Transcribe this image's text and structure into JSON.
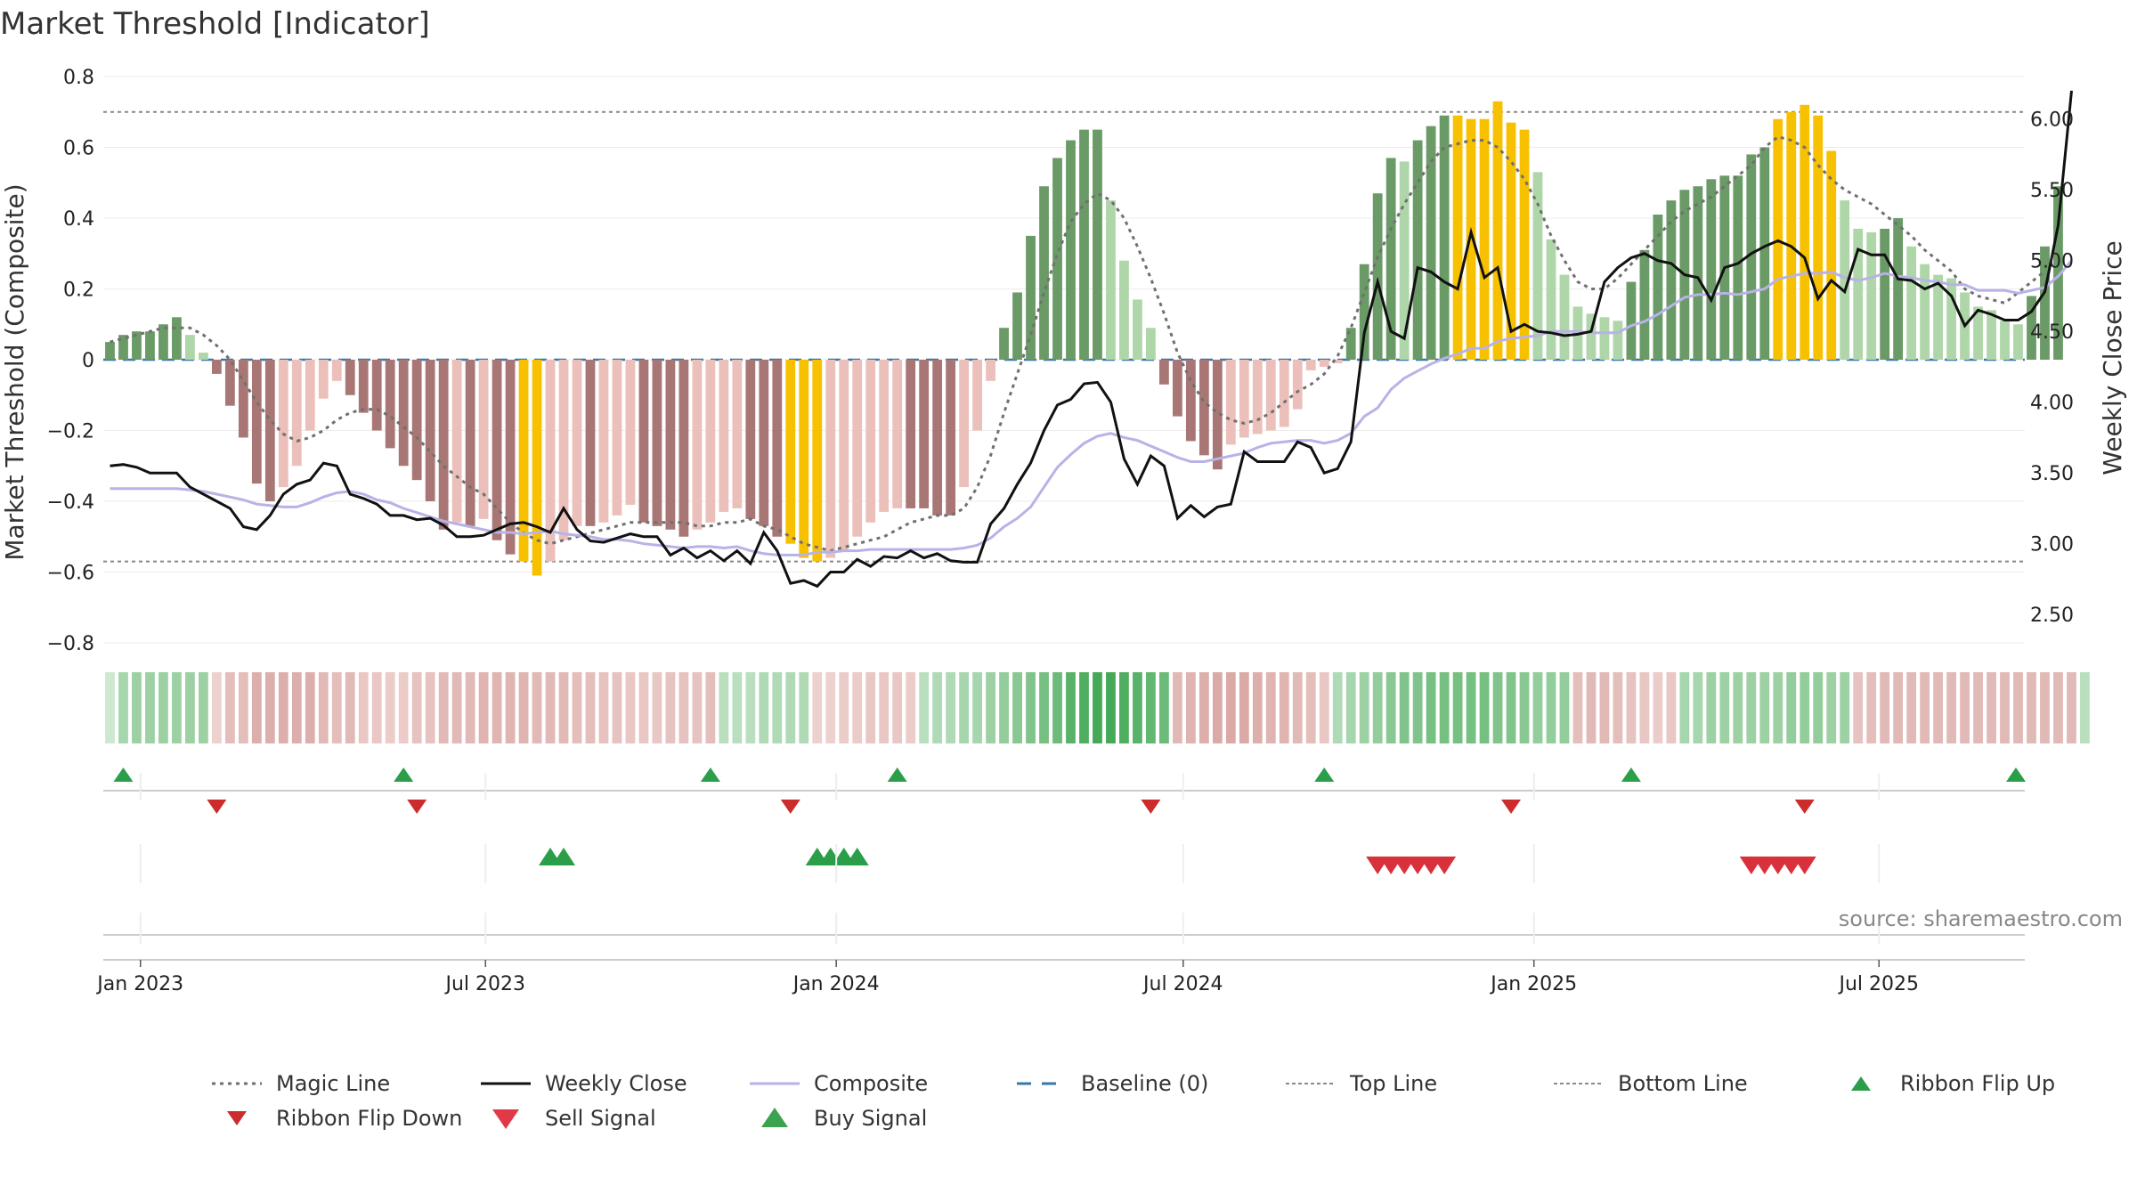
{
  "title": "Market Threshold [Indicator]",
  "source": "source: sharemaestro.com",
  "colors": {
    "bar_pos_dark": "#6a9a66",
    "bar_pos_light": "#aed6a8",
    "bar_neg_dark": "#a87775",
    "bar_neg_light": "#ebc0bb",
    "extreme": "#f8c100",
    "weekly_close": "#111111",
    "composite": "#b8b2e6",
    "magic": "#707070",
    "baseline": "#3a78a8",
    "buy": "#2a9e48",
    "sell": "#d8313c",
    "ribbon_flip_down": "#cc2c2c"
  },
  "chart_data": {
    "type": "bar",
    "xlabel": "",
    "ylabel": "Market Threshold (Composite)",
    "y2label": "Weekly Close Price",
    "ylim": [
      -0.8,
      0.8
    ],
    "y2lim": [
      2.3,
      6.3
    ],
    "yticks": [
      "−0.8",
      "−0.6",
      "−0.4",
      "−0.2",
      "0",
      "0.2",
      "0.4",
      "0.6",
      "0.8"
    ],
    "y2ticks": [
      "2.50",
      "3.00",
      "3.50",
      "4.00",
      "4.50",
      "5.00",
      "5.50",
      "6.00"
    ],
    "xticks": [
      "Jan 2023",
      "Jul 2023",
      "Jan 2024",
      "Jul 2024",
      "Jan 2025",
      "Jul 2025"
    ],
    "top_line": 0.7,
    "bottom_line": -0.57,
    "baseline": 0,
    "start_date": "2022-12-16",
    "weeks": 144,
    "composite_bars": [
      0.05,
      0.07,
      0.08,
      0.08,
      0.1,
      0.12,
      0.07,
      0.02,
      -0.04,
      -0.13,
      -0.22,
      -0.35,
      -0.4,
      -0.36,
      -0.3,
      -0.2,
      -0.11,
      -0.06,
      -0.1,
      -0.15,
      -0.2,
      -0.25,
      -0.3,
      -0.34,
      -0.4,
      -0.48,
      -0.46,
      -0.47,
      -0.45,
      -0.51,
      -0.55,
      -0.57,
      -0.61,
      -0.57,
      -0.51,
      -0.47,
      -0.47,
      -0.46,
      -0.44,
      -0.41,
      -0.46,
      -0.47,
      -0.48,
      -0.5,
      -0.48,
      -0.46,
      -0.43,
      -0.42,
      -0.45,
      -0.47,
      -0.5,
      -0.52,
      -0.56,
      -0.57,
      -0.56,
      -0.54,
      -0.5,
      -0.46,
      -0.43,
      -0.42,
      -0.42,
      -0.42,
      -0.44,
      -0.44,
      -0.36,
      -0.2,
      -0.06,
      0.09,
      0.19,
      0.35,
      0.49,
      0.57,
      0.62,
      0.65,
      0.65,
      0.45,
      0.28,
      0.17,
      0.09,
      -0.07,
      -0.16,
      -0.23,
      -0.27,
      -0.31,
      -0.24,
      -0.22,
      -0.21,
      -0.2,
      -0.19,
      -0.14,
      -0.03,
      -0.02,
      -0.01,
      0.09,
      0.27,
      0.47,
      0.57,
      0.56,
      0.62,
      0.66,
      0.69,
      0.69,
      0.68,
      0.68,
      0.73,
      0.67,
      0.65,
      0.53,
      0.34,
      0.24,
      0.15,
      0.13,
      0.12,
      0.11,
      0.22,
      0.31,
      0.41,
      0.45,
      0.48,
      0.49,
      0.51,
      0.52,
      0.52,
      0.58,
      0.6,
      0.68,
      0.7,
      0.72,
      0.69,
      0.59,
      0.45,
      0.37,
      0.36,
      0.37,
      0.4,
      0.32,
      0.27,
      0.24,
      0.23,
      0.19,
      0.15,
      0.14,
      0.11,
      0.1,
      0.18,
      0.32,
      0.49
    ],
    "extreme_indices": [
      31,
      32,
      51,
      52,
      53,
      101,
      102,
      103,
      104,
      105,
      106,
      125,
      126,
      127,
      128,
      129
    ],
    "series": [
      {
        "name": "Weekly Close",
        "axis": "right",
        "values": [
          3.55,
          3.56,
          3.54,
          3.5,
          3.5,
          3.5,
          3.4,
          3.35,
          3.3,
          3.25,
          3.12,
          3.1,
          3.2,
          3.35,
          3.42,
          3.45,
          3.57,
          3.55,
          3.35,
          3.32,
          3.28,
          3.2,
          3.2,
          3.17,
          3.18,
          3.13,
          3.05,
          3.05,
          3.06,
          3.1,
          3.14,
          3.15,
          3.12,
          3.08,
          3.25,
          3.1,
          3.02,
          3.01,
          3.04,
          3.07,
          3.05,
          3.05,
          2.92,
          2.97,
          2.9,
          2.95,
          2.88,
          2.95,
          2.86,
          3.08,
          2.95,
          2.72,
          2.74,
          2.7,
          2.8,
          2.8,
          2.89,
          2.84,
          2.91,
          2.9,
          2.95,
          2.9,
          2.93,
          2.88,
          2.87,
          2.87,
          3.14,
          3.25,
          3.42,
          3.57,
          3.8,
          3.98,
          4.02,
          4.13,
          4.14,
          4.0,
          3.6,
          3.42,
          3.62,
          3.55,
          3.18,
          3.27,
          3.19,
          3.26,
          3.28,
          3.65,
          3.58,
          3.58,
          3.58,
          3.72,
          3.68,
          3.5,
          3.53,
          3.72,
          4.49,
          4.85,
          4.5,
          4.45,
          4.95,
          4.92,
          4.85,
          4.8,
          5.2,
          4.88,
          4.95,
          4.5,
          4.55,
          4.5,
          4.49,
          4.47,
          4.48,
          4.5,
          4.85,
          4.95,
          5.02,
          5.05,
          5.0,
          4.98,
          4.9,
          4.88,
          4.72,
          4.95,
          4.98,
          5.05,
          5.1,
          5.14,
          5.1,
          5.02,
          4.73,
          4.86,
          4.78,
          5.08,
          5.04,
          5.04,
          4.87,
          4.86,
          4.8,
          4.84,
          4.75,
          4.54,
          4.65,
          4.62,
          4.58,
          4.58,
          4.64,
          4.78,
          5.25,
          6.2
        ]
      },
      {
        "name": "Composite",
        "axis": "right",
        "values": [
          3.39,
          3.39,
          3.39,
          3.39,
          3.39,
          3.39,
          3.38,
          3.37,
          3.35,
          3.33,
          3.31,
          3.28,
          3.27,
          3.26,
          3.26,
          3.29,
          3.33,
          3.36,
          3.37,
          3.35,
          3.31,
          3.29,
          3.25,
          3.22,
          3.19,
          3.16,
          3.14,
          3.12,
          3.1,
          3.08,
          3.08,
          3.07,
          3.08,
          3.09,
          3.07,
          3.06,
          3.05,
          3.03,
          3.03,
          3.02,
          3.0,
          2.99,
          2.98,
          2.97,
          2.98,
          2.98,
          2.97,
          2.98,
          2.95,
          2.93,
          2.92,
          2.92,
          2.92,
          2.94,
          2.94,
          2.95,
          2.95,
          2.96,
          2.96,
          2.96,
          2.96,
          2.96,
          2.96,
          2.96,
          2.97,
          2.99,
          3.04,
          3.12,
          3.18,
          3.26,
          3.4,
          3.54,
          3.63,
          3.71,
          3.76,
          3.78,
          3.75,
          3.73,
          3.69,
          3.65,
          3.61,
          3.58,
          3.58,
          3.6,
          3.62,
          3.64,
          3.68,
          3.71,
          3.72,
          3.73,
          3.73,
          3.71,
          3.73,
          3.78,
          3.9,
          3.96,
          4.09,
          4.17,
          4.22,
          4.27,
          4.31,
          4.34,
          4.38,
          4.38,
          4.43,
          4.45,
          4.46,
          4.47,
          4.5,
          4.5,
          4.5,
          4.49,
          4.49,
          4.49,
          4.54,
          4.57,
          4.62,
          4.68,
          4.74,
          4.76,
          4.76,
          4.77,
          4.76,
          4.78,
          4.8,
          4.87,
          4.89,
          4.91,
          4.91,
          4.92,
          4.88,
          4.86,
          4.88,
          4.91,
          4.89,
          4.88,
          4.86,
          4.85,
          4.83,
          4.83,
          4.79,
          4.79,
          4.79,
          4.77,
          4.79,
          4.81,
          4.89,
          5.0
        ]
      },
      {
        "name": "Magic Line",
        "axis": "left",
        "values": [
          0.05,
          0.06,
          0.07,
          0.08,
          0.09,
          0.09,
          0.09,
          0.07,
          0.04,
          0,
          -0.06,
          -0.12,
          -0.17,
          -0.21,
          -0.23,
          -0.22,
          -0.2,
          -0.17,
          -0.15,
          -0.14,
          -0.14,
          -0.16,
          -0.19,
          -0.22,
          -0.26,
          -0.3,
          -0.33,
          -0.36,
          -0.38,
          -0.42,
          -0.46,
          -0.49,
          -0.51,
          -0.52,
          -0.51,
          -0.5,
          -0.49,
          -0.48,
          -0.47,
          -0.46,
          -0.46,
          -0.46,
          -0.46,
          -0.46,
          -0.47,
          -0.47,
          -0.46,
          -0.46,
          -0.45,
          -0.47,
          -0.48,
          -0.5,
          -0.52,
          -0.53,
          -0.54,
          -0.53,
          -0.52,
          -0.51,
          -0.5,
          -0.48,
          -0.46,
          -0.45,
          -0.44,
          -0.44,
          -0.42,
          -0.36,
          -0.27,
          -0.15,
          -0.04,
          0.07,
          0.19,
          0.3,
          0.39,
          0.44,
          0.47,
          0.45,
          0.4,
          0.32,
          0.23,
          0.13,
          0.02,
          -0.06,
          -0.12,
          -0.15,
          -0.17,
          -0.18,
          -0.17,
          -0.15,
          -0.12,
          -0.09,
          -0.07,
          -0.04,
          0.01,
          0.09,
          0.19,
          0.29,
          0.37,
          0.44,
          0.5,
          0.56,
          0.6,
          0.61,
          0.62,
          0.62,
          0.6,
          0.56,
          0.51,
          0.44,
          0.35,
          0.28,
          0.22,
          0.2,
          0.2,
          0.23,
          0.27,
          0.31,
          0.35,
          0.39,
          0.42,
          0.44,
          0.46,
          0.49,
          0.52,
          0.55,
          0.6,
          0.63,
          0.62,
          0.6,
          0.55,
          0.51,
          0.48,
          0.46,
          0.44,
          0.41,
          0.38,
          0.35,
          0.31,
          0.28,
          0.25,
          0.2,
          0.18,
          0.17,
          0.16,
          0.19,
          0.22,
          0.25
        ]
      }
    ],
    "ribbon": [
      0.15,
      0.35,
      0.4,
      0.4,
      0.4,
      0.4,
      0.4,
      0.4,
      -0.2,
      -0.4,
      -0.4,
      -0.55,
      -0.55,
      -0.55,
      -0.55,
      -0.55,
      -0.45,
      -0.4,
      -0.45,
      -0.3,
      -0.3,
      -0.25,
      -0.25,
      -0.35,
      -0.35,
      -0.45,
      -0.45,
      -0.45,
      -0.5,
      -0.5,
      -0.5,
      -0.5,
      -0.45,
      -0.45,
      -0.45,
      -0.4,
      -0.4,
      -0.35,
      -0.35,
      -0.3,
      -0.3,
      -0.3,
      -0.35,
      -0.35,
      -0.35,
      -0.4,
      0.25,
      0.25,
      0.25,
      0.3,
      0.3,
      0.3,
      0.3,
      -0.2,
      -0.2,
      -0.25,
      -0.25,
      -0.3,
      -0.3,
      -0.3,
      -0.25,
      0.25,
      0.3,
      0.3,
      0.35,
      0.35,
      0.4,
      0.45,
      0.5,
      0.55,
      0.6,
      0.65,
      0.75,
      0.8,
      0.85,
      0.85,
      0.8,
      0.75,
      0.7,
      0.65,
      -0.45,
      -0.5,
      -0.55,
      -0.6,
      -0.6,
      -0.6,
      -0.55,
      -0.5,
      -0.5,
      -0.45,
      -0.4,
      -0.3,
      0.3,
      0.35,
      0.4,
      0.45,
      0.5,
      0.55,
      0.55,
      0.6,
      0.6,
      0.6,
      0.6,
      0.6,
      0.55,
      0.55,
      0.5,
      0.45,
      0.45,
      0.45,
      -0.4,
      -0.45,
      -0.45,
      -0.4,
      -0.35,
      -0.3,
      -0.25,
      -0.3,
      0.35,
      0.35,
      0.4,
      0.4,
      0.4,
      0.4,
      0.4,
      0.4,
      0.45,
      0.45,
      0.45,
      0.4,
      0.4,
      -0.35,
      -0.4,
      -0.45,
      -0.45,
      -0.45,
      -0.45,
      -0.45,
      -0.45,
      -0.45,
      -0.45,
      -0.45,
      -0.45,
      -0.45,
      -0.45,
      -0.45,
      -0.45,
      -0.45,
      0.25
    ],
    "ribbon_flip_up": [
      "2022-12-23",
      "2023-05-19",
      "2023-10-27",
      "2024-02-02",
      "2024-09-13",
      "2025-02-21",
      "2025-10-03"
    ],
    "ribbon_flip_down": [
      "2023-02-10",
      "2023-05-26",
      "2023-12-08",
      "2024-06-14",
      "2024-12-20",
      "2025-05-23"
    ],
    "buy_signals": [
      "2023-08-04",
      "2023-08-11",
      "2023-12-22",
      "2023-12-29",
      "2024-01-05",
      "2024-01-12"
    ],
    "sell_signals": [
      "2024-10-11",
      "2024-10-18",
      "2024-10-25",
      "2024-11-01",
      "2024-11-08",
      "2024-11-15",
      "2025-04-25",
      "2025-05-02",
      "2025-05-09",
      "2025-05-16",
      "2025-05-23"
    ],
    "legend": [
      {
        "label": "Magic Line",
        "kind": "dotted",
        "color": "#707070"
      },
      {
        "label": "Weekly Close",
        "kind": "solid",
        "color": "#111111"
      },
      {
        "label": "Composite",
        "kind": "solid",
        "color": "#b8b2e6"
      },
      {
        "label": "Baseline (0)",
        "kind": "dashed",
        "color": "#3a78a8"
      },
      {
        "label": "Top Line",
        "kind": "dotted-light",
        "color": "#8a8a8a"
      },
      {
        "label": "Bottom Line",
        "kind": "dotted-light",
        "color": "#8a8a8a"
      },
      {
        "label": "Ribbon Flip Up",
        "kind": "tri-up",
        "color": "#2a9e48"
      },
      {
        "label": "Ribbon Flip Down",
        "kind": "tri-down",
        "color": "#cc2c2c"
      },
      {
        "label": "Sell Signal",
        "kind": "tri-down-lg",
        "color": "#e03a48"
      },
      {
        "label": "Buy Signal",
        "kind": "tri-up-lg",
        "color": "#3aa34e"
      }
    ]
  }
}
